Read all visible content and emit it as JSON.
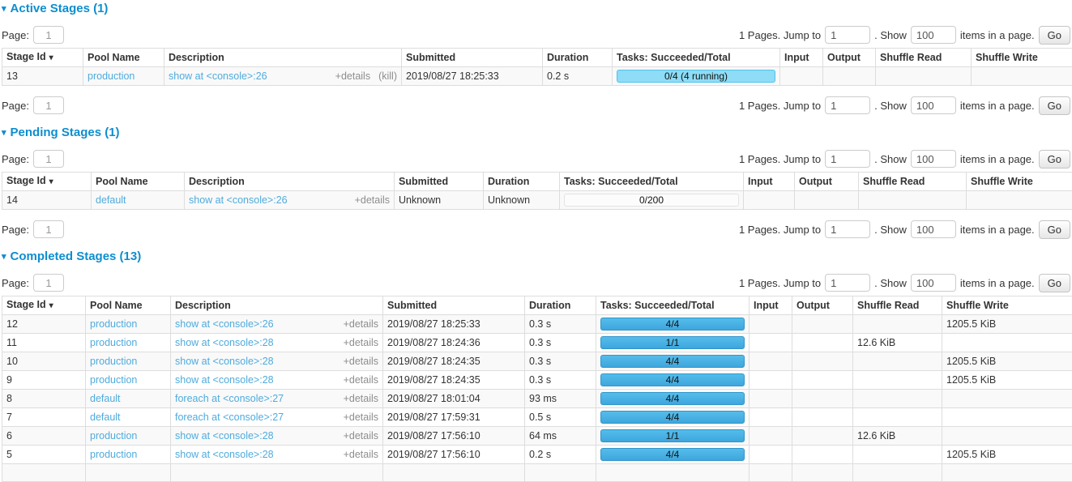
{
  "icons": {
    "collapse_arrow": "▾",
    "sort_arrow": "▾"
  },
  "colors": {
    "heading_blue": "#0d8ecf",
    "link_blue": "#4fabdd",
    "bar_completed_fill": "#47b1e5",
    "bar_running_fill": "#8edcf6",
    "bar_empty_fill": "#fcfcfc",
    "table_border": "#dddddd",
    "stripe_bg": "#f9f9f9"
  },
  "pagination": {
    "page_label": "Page:",
    "page_value": "1",
    "pages_jump_text": "1 Pages. Jump to",
    "jump_value": "1",
    "show_text": ". Show",
    "show_value": "100",
    "items_text": "items in a page.",
    "go_label": "Go"
  },
  "table_columns": [
    "Stage Id",
    "Pool Name",
    "Description",
    "Submitted",
    "Duration",
    "Tasks: Succeeded/Total",
    "Input",
    "Output",
    "Shuffle Read",
    "Shuffle Write"
  ],
  "sections": {
    "active": {
      "title": "Active Stages (1)",
      "rows": [
        {
          "stage_id": "13",
          "pool_name": "production",
          "description": "show at <console>:26",
          "details_label": "+details",
          "kill_label": "(kill)",
          "submitted": "2019/08/27 18:25:33",
          "duration": "0.2 s",
          "tasks_label": "0/4 (4 running)",
          "bar": "running",
          "input": "",
          "output": "",
          "shuffle_read": "",
          "shuffle_write": ""
        }
      ]
    },
    "pending": {
      "title": "Pending Stages (1)",
      "rows": [
        {
          "stage_id": "14",
          "pool_name": "default",
          "description": "show at <console>:26",
          "details_label": "+details",
          "kill_label": "",
          "submitted": "Unknown",
          "duration": "Unknown",
          "tasks_label": "0/200",
          "bar": "empty",
          "input": "",
          "output": "",
          "shuffle_read": "",
          "shuffle_write": ""
        }
      ]
    },
    "completed": {
      "title": "Completed Stages (13)",
      "rows": [
        {
          "stage_id": "12",
          "pool_name": "production",
          "description": "show at <console>:26",
          "details_label": "+details",
          "kill_label": "",
          "submitted": "2019/08/27 18:25:33",
          "duration": "0.3 s",
          "tasks_label": "4/4",
          "bar": "completed",
          "input": "",
          "output": "",
          "shuffle_read": "",
          "shuffle_write": "1205.5 KiB"
        },
        {
          "stage_id": "11",
          "pool_name": "production",
          "description": "show at <console>:28",
          "details_label": "+details",
          "kill_label": "",
          "submitted": "2019/08/27 18:24:36",
          "duration": "0.3 s",
          "tasks_label": "1/1",
          "bar": "completed",
          "input": "",
          "output": "",
          "shuffle_read": "12.6 KiB",
          "shuffle_write": ""
        },
        {
          "stage_id": "10",
          "pool_name": "production",
          "description": "show at <console>:28",
          "details_label": "+details",
          "kill_label": "",
          "submitted": "2019/08/27 18:24:35",
          "duration": "0.3 s",
          "tasks_label": "4/4",
          "bar": "completed",
          "input": "",
          "output": "",
          "shuffle_read": "",
          "shuffle_write": "1205.5 KiB"
        },
        {
          "stage_id": "9",
          "pool_name": "production",
          "description": "show at <console>:28",
          "details_label": "+details",
          "kill_label": "",
          "submitted": "2019/08/27 18:24:35",
          "duration": "0.3 s",
          "tasks_label": "4/4",
          "bar": "completed",
          "input": "",
          "output": "",
          "shuffle_read": "",
          "shuffle_write": "1205.5 KiB"
        },
        {
          "stage_id": "8",
          "pool_name": "default",
          "description": "foreach at <console>:27",
          "details_label": "+details",
          "kill_label": "",
          "submitted": "2019/08/27 18:01:04",
          "duration": "93 ms",
          "tasks_label": "4/4",
          "bar": "completed",
          "input": "",
          "output": "",
          "shuffle_read": "",
          "shuffle_write": ""
        },
        {
          "stage_id": "7",
          "pool_name": "default",
          "description": "foreach at <console>:27",
          "details_label": "+details",
          "kill_label": "",
          "submitted": "2019/08/27 17:59:31",
          "duration": "0.5 s",
          "tasks_label": "4/4",
          "bar": "completed",
          "input": "",
          "output": "",
          "shuffle_read": "",
          "shuffle_write": ""
        },
        {
          "stage_id": "6",
          "pool_name": "production",
          "description": "show at <console>:28",
          "details_label": "+details",
          "kill_label": "",
          "submitted": "2019/08/27 17:56:10",
          "duration": "64 ms",
          "tasks_label": "1/1",
          "bar": "completed",
          "input": "",
          "output": "",
          "shuffle_read": "12.6 KiB",
          "shuffle_write": ""
        },
        {
          "stage_id": "5",
          "pool_name": "production",
          "description": "show at <console>:28",
          "details_label": "+details",
          "kill_label": "",
          "submitted": "2019/08/27 17:56:10",
          "duration": "0.2 s",
          "tasks_label": "4/4",
          "bar": "completed",
          "input": "",
          "output": "",
          "shuffle_read": "",
          "shuffle_write": "1205.5 KiB"
        }
      ]
    }
  }
}
